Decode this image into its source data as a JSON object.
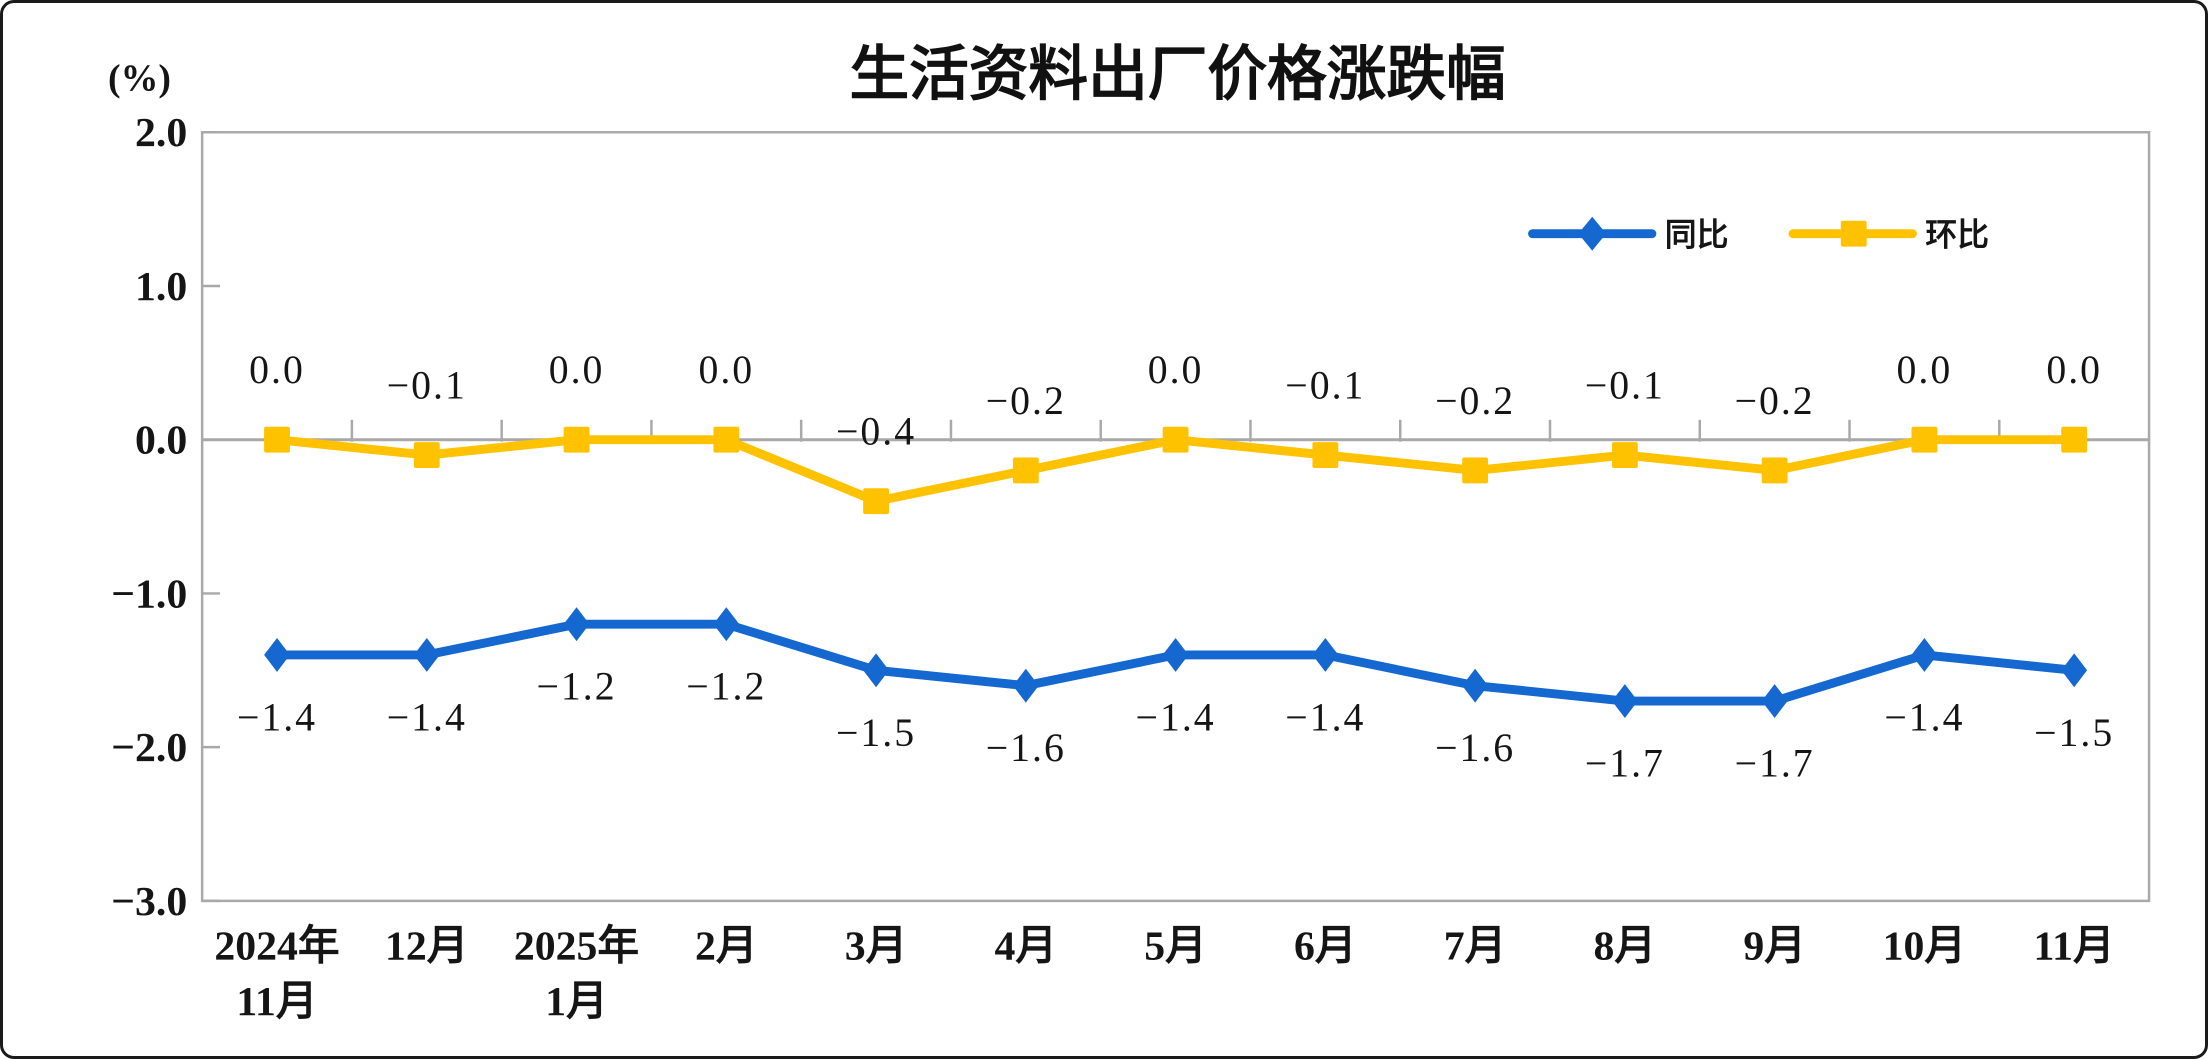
{
  "chart_data": {
    "type": "line",
    "title": "生活资料出厂价格涨跌幅",
    "unit_label": "(%)",
    "categories": [
      [
        "2024年",
        "11月"
      ],
      [
        "12月"
      ],
      [
        "2025年",
        "1月"
      ],
      [
        "2月"
      ],
      [
        "3月"
      ],
      [
        "4月"
      ],
      [
        "5月"
      ],
      [
        "6月"
      ],
      [
        "7月"
      ],
      [
        "8月"
      ],
      [
        "9月"
      ],
      [
        "10月"
      ],
      [
        "11月"
      ]
    ],
    "ylim": [
      -3.0,
      2.0
    ],
    "y_ticks": [
      2.0,
      1.0,
      0.0,
      -1.0,
      -2.0,
      -3.0
    ],
    "y_tick_labels": [
      "2.0",
      "1.0",
      "0.0",
      "-1.0",
      "-2.0",
      "-3.0"
    ],
    "grid": false,
    "legend_position": "top-right",
    "axis_color": "#a9a9a9",
    "label_text_color": "#151515",
    "series": [
      {
        "key": "yoy",
        "name": "同比",
        "marker": "diamond",
        "color": "#1468cf",
        "label_position": "below",
        "values": [
          -1.4,
          -1.4,
          -1.2,
          -1.2,
          -1.5,
          -1.6,
          -1.4,
          -1.4,
          -1.6,
          -1.7,
          -1.7,
          -1.4,
          -1.5
        ],
        "labels": [
          "-1.4",
          "-1.4",
          "-1.2",
          "-1.2",
          "-1.5",
          "-1.6",
          "-1.4",
          "-1.4",
          "-1.6",
          "-1.7",
          "-1.7",
          "-1.4",
          "-1.5"
        ]
      },
      {
        "key": "mom",
        "name": "环比",
        "marker": "square",
        "color": "#ffc200",
        "label_position": "above",
        "values": [
          0.0,
          -0.1,
          0.0,
          0.0,
          -0.4,
          -0.2,
          0.0,
          -0.1,
          -0.2,
          -0.1,
          -0.2,
          0.0,
          0.0
        ],
        "labels": [
          "0.0",
          "-0.1",
          "0.0",
          "0.0",
          "-0.4",
          "-0.2",
          "0.0",
          "-0.1",
          "-0.2",
          "-0.1",
          "-0.2",
          "0.0",
          "0.0"
        ]
      }
    ]
  }
}
